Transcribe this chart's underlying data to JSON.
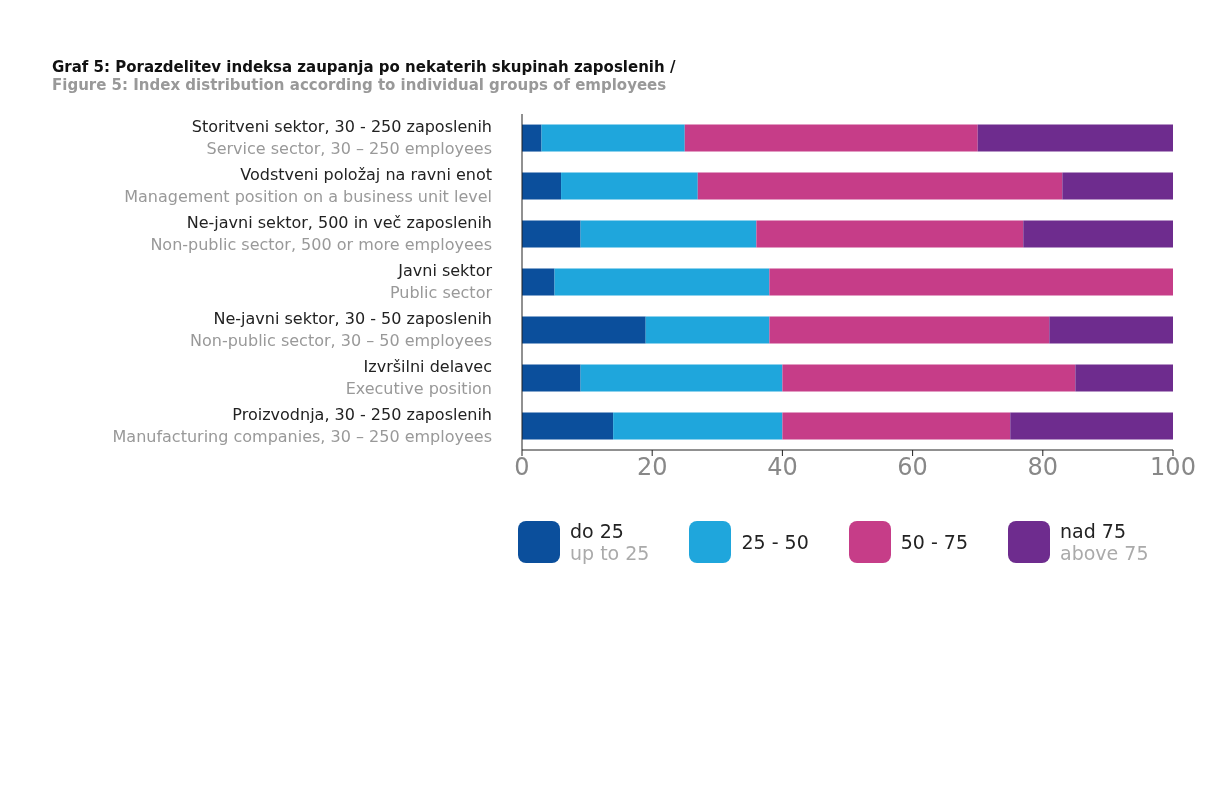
{
  "chart_data": {
    "type": "bar",
    "orientation": "horizontal",
    "stacked": true,
    "title": "Graf 5: Porazdelitev indeksa zaupanja po nekaterih skupinah zaposlenih /",
    "subtitle": "Figure 5: Index distribution according to individual groups of employees",
    "categories": [
      "Storitveni sektor, 30 - 250 zaposlenih\nService sector, 30 – 250 employees",
      "Vodstveni položaj na ravni enot\nManagement position on a business unit level",
      "Ne-javni sektor, 500 in več zaposlenih\nNon-public sector, 500 or more employees",
      "Javni sektor\nPublic sector",
      "Ne-javni sektor, 30 - 50 zaposlenih\nNon-public sector, 30 – 50 employees",
      "Izvršilni delavec\nExecutive position",
      "Proizvodnja, 30 - 250 zaposlenih\nManufacturing companies, 30 – 250 employees"
    ],
    "series": [
      {
        "name": "do 25\nup to 25",
        "color": "#0b4f9c",
        "values": [
          3,
          6,
          9,
          5,
          19,
          9,
          14
        ]
      },
      {
        "name": "25 - 50",
        "color": "#1fa6dc",
        "values": [
          22,
          21,
          27,
          33,
          19,
          31,
          26
        ]
      },
      {
        "name": "50 - 75",
        "color": "#c63d88",
        "values": [
          45,
          56,
          41,
          62,
          43,
          45,
          35
        ]
      },
      {
        "name": "nad 75\nabove 75",
        "color": "#6e2c8e",
        "values": [
          30,
          17,
          23,
          0,
          19,
          15,
          25
        ]
      }
    ],
    "xlim": [
      0,
      100
    ],
    "xticks": [
      0,
      20,
      40,
      60,
      80,
      100
    ],
    "grid": false,
    "legend": "bottom"
  }
}
